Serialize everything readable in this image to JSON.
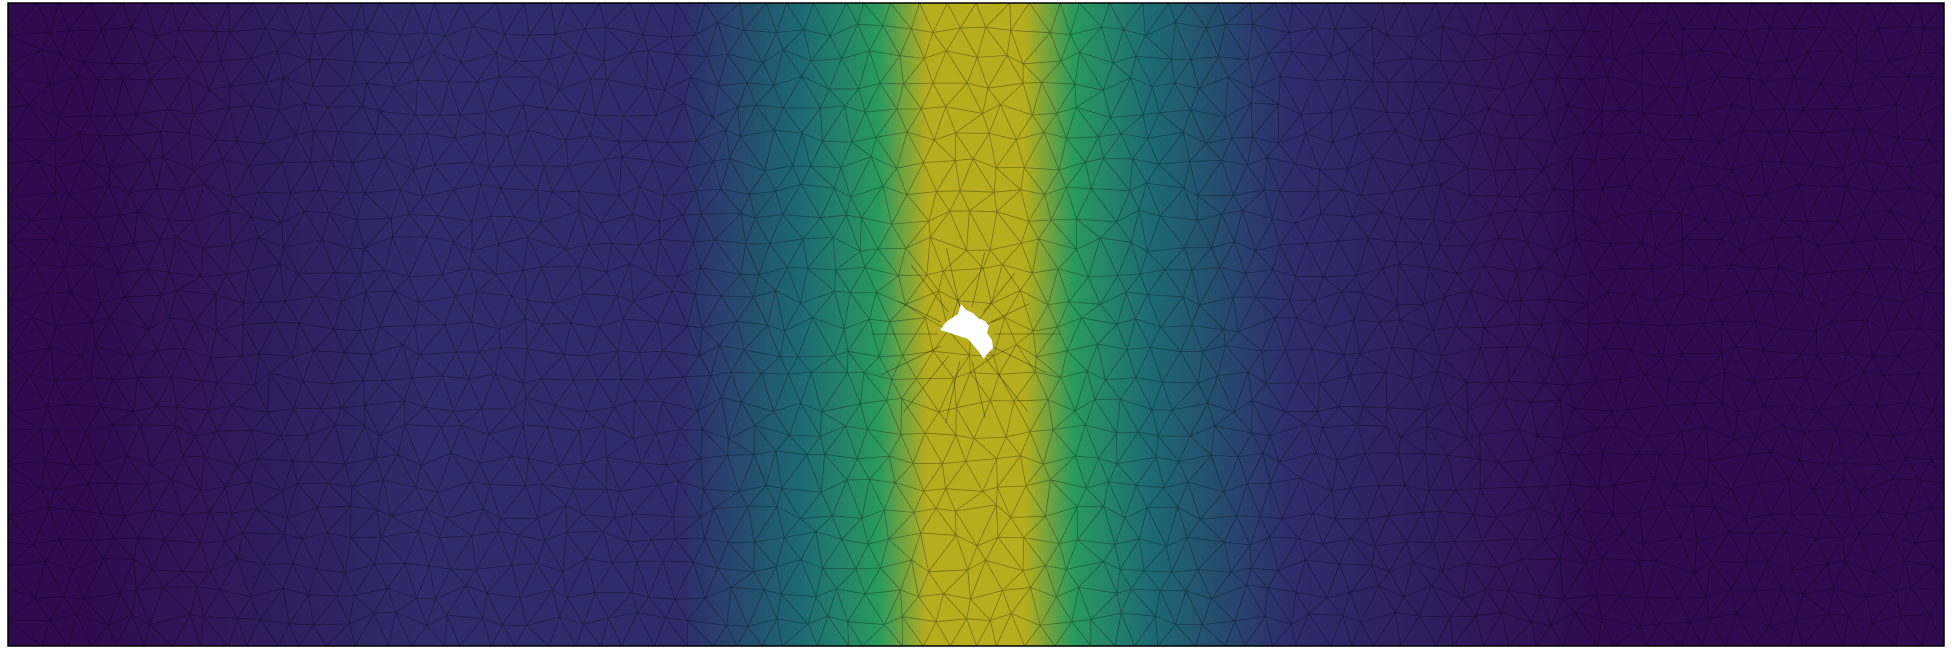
{
  "figure": {
    "type": "triangular-mesh-contour",
    "colormap": "viridis",
    "colors": {
      "low": "#300a4f",
      "mid_low": "#2e2d6b",
      "mid": "#1d6a72",
      "mid_high": "#2a9a5f",
      "high": "#b8ad1e",
      "mesh_line": "#000000",
      "border": "#000000",
      "background": "#ffffff"
    },
    "features": [
      "mesh-panel",
      "field-gradient",
      "mesh-edges",
      "central-void"
    ]
  }
}
